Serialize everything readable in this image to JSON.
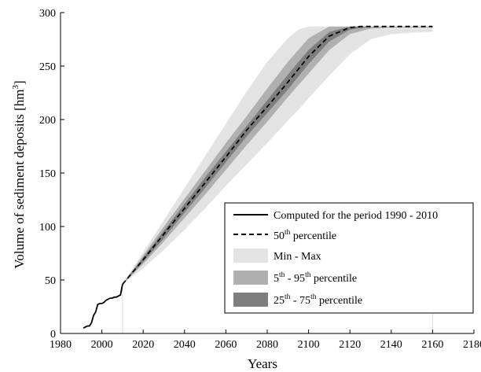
{
  "chart_data": {
    "type": "area",
    "title": "",
    "xlabel": "Years",
    "ylabel": "Volume of sediment deposits [hm",
    "ylabel_sup": "3",
    "ylabel_end": "]",
    "xlim": [
      1980,
      2180
    ],
    "ylim": [
      0,
      300
    ],
    "xticks": [
      1980,
      2000,
      2020,
      2040,
      2060,
      2080,
      2100,
      2120,
      2140,
      2160,
      2180
    ],
    "yticks": [
      0,
      50,
      100,
      150,
      200,
      250,
      300
    ],
    "grid": false,
    "legend_position": "bottom-right",
    "legend": [
      {
        "label": "Computed for the period 1990 - 2010",
        "style": "solid-line"
      },
      {
        "label": "50",
        "sup": "th",
        "rest": " percentile",
        "style": "dashed-line"
      },
      {
        "label": "Min - Max",
        "style": "patch-light"
      },
      {
        "label": "5",
        "sup": "th",
        "mid": " - 95",
        "sup2": "th",
        "rest": " percentile",
        "style": "patch-medium"
      },
      {
        "label": "25",
        "sup": "th",
        "mid": " - 75",
        "sup2": "th",
        "rest": " percentile",
        "style": "patch-dark"
      }
    ],
    "colors": {
      "min_max": "#e3e3e3",
      "p5_p95": "#b0b0b0",
      "p25_p75": "#7e7e7e",
      "lines": "#000000"
    },
    "series": [
      {
        "name": "Computed for the period 1990 - 2010",
        "x": [
          1991,
          1992,
          1993,
          1994,
          1995,
          1996,
          1997,
          1998,
          1999,
          2000,
          2001,
          2002,
          2003,
          2004,
          2005,
          2006,
          2007,
          2008,
          2009,
          2010
        ],
        "y": [
          5,
          6,
          7,
          7,
          10,
          17,
          20,
          27,
          28,
          28,
          29,
          31,
          32,
          33,
          33,
          34,
          34,
          35,
          36,
          46
        ]
      },
      {
        "name": "50th percentile",
        "x": [
          2010,
          2020,
          2030,
          2040,
          2050,
          2060,
          2070,
          2080,
          2090,
          2100,
          2110,
          2120,
          2125,
          2130,
          2140,
          2150,
          2160
        ],
        "y": [
          46,
          69,
          93,
          117,
          141,
          165,
          190,
          212,
          235,
          259,
          278,
          286,
          287,
          287,
          287,
          287,
          287
        ]
      },
      {
        "name": "Min - Max",
        "x": [
          2010,
          2020,
          2030,
          2040,
          2050,
          2060,
          2070,
          2080,
          2090,
          2095,
          2100,
          2110,
          2120,
          2130,
          2140,
          2150,
          2160
        ],
        "upper": [
          46,
          76,
          106,
          136,
          166,
          196,
          226,
          254,
          276,
          284,
          287,
          287,
          287,
          287,
          287,
          287,
          287
        ],
        "lower": [
          46,
          61,
          78,
          97,
          117,
          138,
          158,
          178,
          199,
          209,
          220,
          241,
          261,
          275,
          280,
          281,
          282
        ]
      },
      {
        "name": "5th - 95th percentile",
        "x": [
          2010,
          2020,
          2030,
          2040,
          2050,
          2060,
          2070,
          2080,
          2090,
          2100,
          2110,
          2120,
          2130,
          2140,
          2150,
          2160
        ],
        "upper": [
          46,
          73,
          100,
          126,
          152,
          178,
          203,
          229,
          254,
          276,
          287,
          287,
          287,
          287,
          287,
          287
        ],
        "lower": [
          46,
          65,
          86,
          108,
          130,
          153,
          176,
          198,
          221,
          243,
          265,
          280,
          285,
          286,
          286,
          286
        ]
      },
      {
        "name": "25th - 75th percentile",
        "x": [
          2010,
          2020,
          2030,
          2040,
          2050,
          2060,
          2070,
          2080,
          2090,
          2100,
          2110,
          2120,
          2130,
          2140,
          2150,
          2160
        ],
        "upper": [
          46,
          71,
          96,
          121,
          146,
          170,
          194,
          218,
          242,
          265,
          282,
          287,
          287,
          287,
          287,
          287
        ],
        "lower": [
          46,
          67,
          89,
          113,
          136,
          160,
          184,
          206,
          228,
          252,
          273,
          284,
          287,
          287,
          287,
          287
        ]
      }
    ]
  }
}
